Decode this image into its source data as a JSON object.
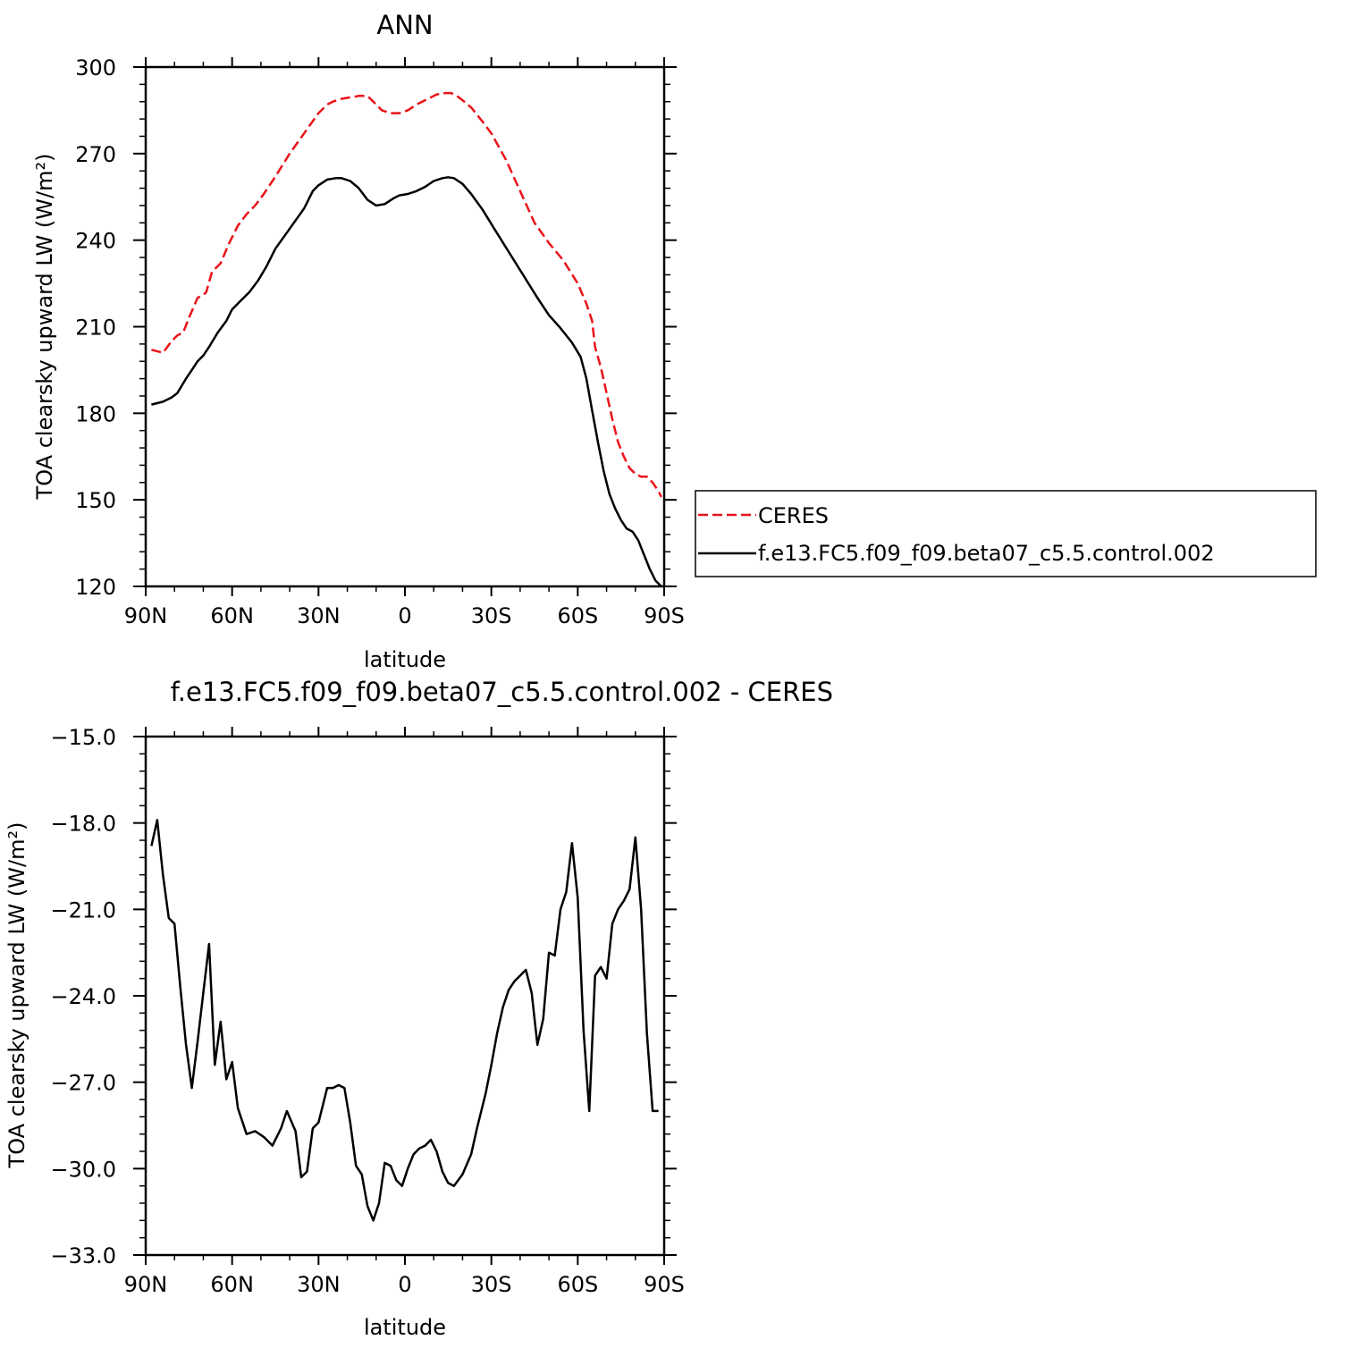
{
  "chart_data": [
    {
      "type": "line",
      "title": "ANN",
      "xlabel": "latitude",
      "ylabel": "TOA clearsky upward LW (W/m²)",
      "xlim": [
        90,
        -90
      ],
      "ylim": [
        120,
        300
      ],
      "x_ticks": [
        {
          "value": 90,
          "label": "90N"
        },
        {
          "value": 60,
          "label": "60N"
        },
        {
          "value": 30,
          "label": "30N"
        },
        {
          "value": 0,
          "label": "0"
        },
        {
          "value": -30,
          "label": "30S"
        },
        {
          "value": -60,
          "label": "60S"
        },
        {
          "value": -90,
          "label": "90S"
        }
      ],
      "y_ticks": [
        {
          "value": 120,
          "label": "120"
        },
        {
          "value": 150,
          "label": "150"
        },
        {
          "value": 180,
          "label": "180"
        },
        {
          "value": 210,
          "label": "210"
        },
        {
          "value": 240,
          "label": "240"
        },
        {
          "value": 270,
          "label": "270"
        },
        {
          "value": 300,
          "label": "300"
        }
      ],
      "legend_position": "right",
      "series": [
        {
          "name": "CERES",
          "color": "#e8141a",
          "dash": true,
          "x": [
            88,
            84,
            81,
            79,
            77,
            75,
            72,
            70,
            69,
            67,
            64,
            61,
            58,
            55,
            52,
            49,
            45,
            40,
            35,
            30,
            27,
            25,
            22,
            19,
            16,
            13,
            11,
            8,
            5,
            2,
            -1,
            -4,
            -7,
            -11,
            -14,
            -16,
            -18,
            -20,
            -23,
            -27,
            -30,
            -35,
            -40,
            -45,
            -50,
            -55,
            -60,
            -63,
            -65,
            -66,
            -68,
            -70,
            -72,
            -74,
            -76,
            -78,
            -80,
            -82,
            -84,
            -86,
            -88,
            -89
          ],
          "y": [
            202,
            201,
            205,
            207,
            208,
            213,
            220,
            221,
            222,
            229,
            232,
            239,
            245,
            249,
            252,
            256,
            262,
            270,
            277,
            284,
            287,
            288,
            289,
            289.5,
            290,
            290,
            288,
            285,
            284,
            284,
            285,
            287,
            288.5,
            290.5,
            291,
            291,
            290,
            288.5,
            286,
            281,
            277,
            268,
            257,
            246,
            239,
            233,
            225,
            218,
            212,
            203,
            196,
            187,
            178,
            170,
            165,
            161,
            159,
            158,
            158,
            156,
            153,
            151
          ]
        },
        {
          "name": "f.e13.FC5.f09_f09.beta07_c5.5.control.002",
          "color": "#000000",
          "dash": false,
          "x": [
            88,
            84,
            81,
            79,
            76,
            74,
            72,
            70,
            68,
            65,
            62,
            60,
            57,
            54,
            51,
            48,
            45,
            40,
            35,
            32,
            30,
            27,
            24,
            22,
            19,
            16,
            13,
            10,
            7,
            4,
            2,
            -1,
            -4,
            -7,
            -10,
            -13,
            -15,
            -17,
            -20,
            -23,
            -27,
            -31,
            -36,
            -41,
            -46,
            -50,
            -54,
            -58,
            -61,
            -63,
            -65,
            -67,
            -69,
            -71,
            -73,
            -75,
            -77,
            -79,
            -81,
            -83,
            -85,
            -87,
            -89
          ],
          "y": [
            183,
            184,
            185.5,
            187,
            192,
            195,
            198,
            200,
            203,
            208,
            212,
            216,
            219,
            222,
            226,
            231,
            237,
            244,
            251,
            257,
            259,
            261,
            261.5,
            261.5,
            260.5,
            258,
            254,
            252,
            252.5,
            254.5,
            255.5,
            256,
            257,
            258.5,
            260.5,
            261.5,
            261.8,
            261.5,
            259.5,
            256,
            250.5,
            244,
            236,
            228,
            220,
            214,
            209.5,
            204.5,
            199.5,
            192,
            181,
            170,
            160,
            152,
            147,
            143,
            140,
            139,
            136,
            131,
            126,
            122,
            120
          ]
        }
      ]
    },
    {
      "type": "line",
      "title": "f.e13.FC5.f09_f09.beta07_c5.5.control.002 - CERES",
      "xlabel": "latitude",
      "ylabel": "TOA clearsky upward LW (W/m²)",
      "xlim": [
        90,
        -90
      ],
      "ylim": [
        -33,
        -15
      ],
      "x_ticks": [
        {
          "value": 90,
          "label": "90N"
        },
        {
          "value": 60,
          "label": "60N"
        },
        {
          "value": 30,
          "label": "30N"
        },
        {
          "value": 0,
          "label": "0"
        },
        {
          "value": -30,
          "label": "30S"
        },
        {
          "value": -60,
          "label": "60S"
        },
        {
          "value": -90,
          "label": "90S"
        }
      ],
      "y_ticks": [
        {
          "value": -33,
          "label": "−33.0"
        },
        {
          "value": -30,
          "label": "−30.0"
        },
        {
          "value": -27,
          "label": "−27.0"
        },
        {
          "value": -24,
          "label": "−24.0"
        },
        {
          "value": -21,
          "label": "−21.0"
        },
        {
          "value": -18,
          "label": "−18.0"
        },
        {
          "value": -15,
          "label": "−15.0"
        }
      ],
      "series": [
        {
          "name": "",
          "color": "#000000",
          "dash": false,
          "x": [
            88,
            86,
            84,
            82,
            80,
            78,
            76,
            74,
            72,
            70,
            68,
            66,
            64,
            62,
            60,
            58,
            55,
            52,
            49,
            46,
            43,
            41,
            38,
            36,
            34,
            32,
            30,
            27,
            25,
            23,
            21,
            19,
            17,
            15,
            13,
            11,
            9,
            7,
            5,
            3,
            1,
            -1,
            -3,
            -5,
            -7,
            -9,
            -11,
            -13,
            -15,
            -17,
            -20,
            -23,
            -25,
            -28,
            -30,
            -32,
            -34,
            -36,
            -38,
            -40,
            -42,
            -44,
            -46,
            -48,
            -50,
            -52,
            -54,
            -56,
            -58,
            -60,
            -62,
            -64,
            -66,
            -68,
            -70,
            -72,
            -74,
            -76,
            -78,
            -80,
            -82,
            -84,
            -86,
            -88
          ],
          "y": [
            -18.8,
            -17.9,
            -19.8,
            -21.3,
            -21.5,
            -23.7,
            -25.7,
            -27.2,
            -25.6,
            -23.9,
            -22.2,
            -26.4,
            -24.9,
            -26.9,
            -26.3,
            -27.9,
            -28.8,
            -28.7,
            -28.9,
            -29.2,
            -28.6,
            -28.0,
            -28.7,
            -30.3,
            -30.1,
            -28.6,
            -28.4,
            -27.2,
            -27.2,
            -27.1,
            -27.2,
            -28.4,
            -29.9,
            -30.2,
            -31.3,
            -31.8,
            -31.2,
            -29.8,
            -29.9,
            -30.4,
            -30.6,
            -30.0,
            -29.5,
            -29.3,
            -29.2,
            -29.0,
            -29.4,
            -30.1,
            -30.5,
            -30.6,
            -30.2,
            -29.5,
            -28.6,
            -27.4,
            -26.4,
            -25.3,
            -24.4,
            -23.8,
            -23.5,
            -23.3,
            -23.1,
            -23.9,
            -25.7,
            -24.8,
            -22.5,
            -22.6,
            -21.0,
            -20.4,
            -18.7,
            -20.6,
            -25.2,
            -28.0,
            -23.3,
            -23.0,
            -23.4,
            -21.5,
            -21.0,
            -20.7,
            -20.3,
            -18.5,
            -21.0,
            -25.3,
            -28.0,
            -28.0
          ]
        }
      ]
    }
  ]
}
